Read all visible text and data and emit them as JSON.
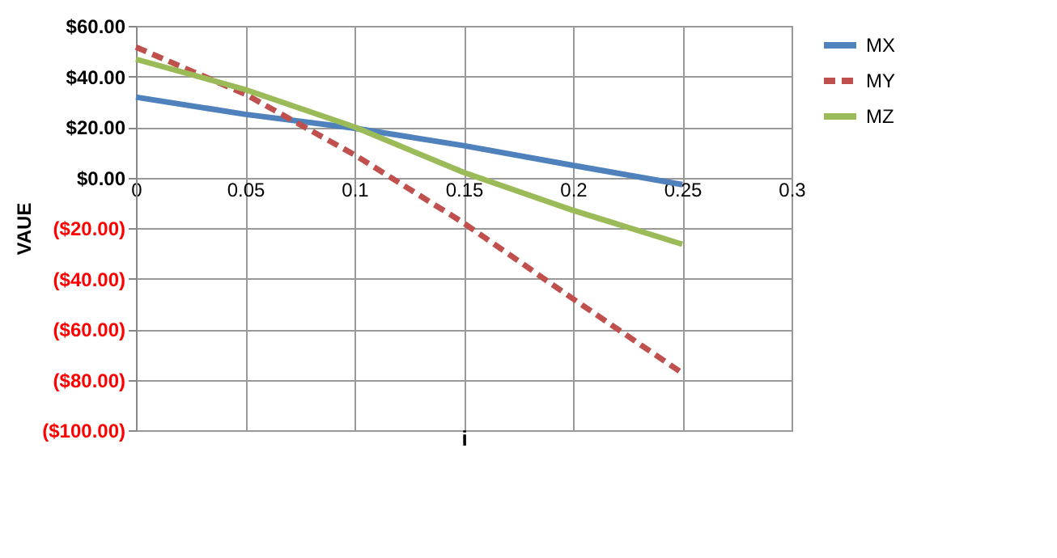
{
  "chart_data": {
    "type": "line",
    "xlabel": "i",
    "ylabel": "VAUE",
    "x": [
      0,
      0.05,
      0.1,
      0.15,
      0.2,
      0.25
    ],
    "series": [
      {
        "name": "MX",
        "color": "#4f81bd",
        "line_style": "solid",
        "values": [
          31.8,
          25,
          19.5,
          12.6,
          4.8,
          -2.8
        ]
      },
      {
        "name": "MY",
        "color": "#c0504d",
        "line_style": "dashed",
        "values": [
          51.6,
          33,
          9,
          -18,
          -48,
          -77.4
        ]
      },
      {
        "name": "MZ",
        "color": "#9bbb59",
        "line_style": "solid",
        "values": [
          46.8,
          34.8,
          20,
          2,
          -13,
          -26.4
        ]
      }
    ],
    "xlim": [
      0,
      0.3
    ],
    "xticks": [
      0,
      0.05,
      0.1,
      0.15,
      0.2,
      0.25,
      0.3
    ],
    "ylim": [
      -100,
      60
    ],
    "yticks": [
      {
        "value": -100,
        "label": "($100.00)"
      },
      {
        "value": -80,
        "label": "($80.00)"
      },
      {
        "value": -60,
        "label": "($60.00)"
      },
      {
        "value": -40,
        "label": "($40.00)"
      },
      {
        "value": -20,
        "label": "($20.00)"
      },
      {
        "value": 0,
        "label": "$0.00"
      },
      {
        "value": 20,
        "label": "$20.00"
      },
      {
        "value": 40,
        "label": "$40.00"
      },
      {
        "value": 60,
        "label": "$60.00"
      }
    ],
    "grid": true,
    "legend": "right",
    "marker": "none"
  }
}
